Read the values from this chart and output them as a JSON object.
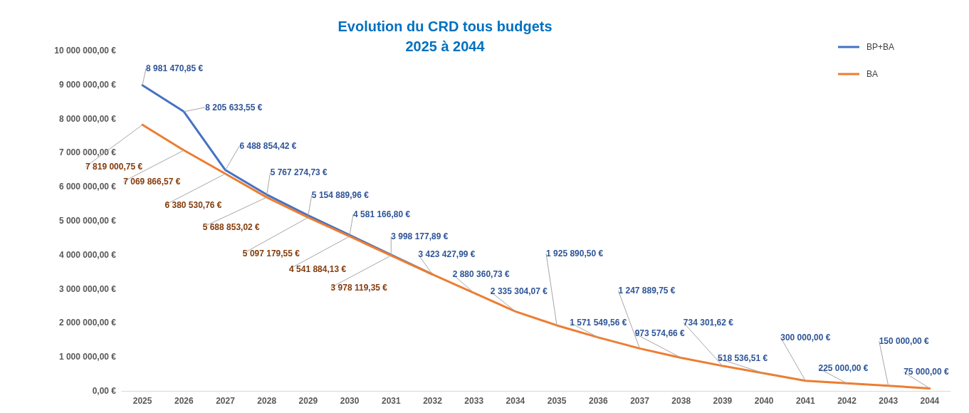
{
  "chart_data": {
    "type": "line",
    "title": "Evolution du CRD tous budgets",
    "subtitle": "2025 à 2044",
    "categories": [
      "2025",
      "2026",
      "2027",
      "2028",
      "2029",
      "2030",
      "2031",
      "2032",
      "2033",
      "2034",
      "2035",
      "2036",
      "2037",
      "2038",
      "2039",
      "2040",
      "2041",
      "2042",
      "2043",
      "2044"
    ],
    "series": [
      {
        "name": "BP+BA",
        "color": "#4472c4",
        "values": [
          8981470.85,
          8205633.55,
          6488854.42,
          5767274.73,
          5154889.96,
          4581166.8,
          3998177.89,
          3423427.99,
          null,
          null,
          null,
          null,
          null,
          null,
          null,
          null,
          null,
          null,
          null,
          null
        ],
        "value_labels": [
          "8 981 470,85 €",
          "8 205 633,55 €",
          "6 488 854,42 €",
          "5 767 274,73 €",
          "5 154 889,96 €",
          "4 581 166,80 €",
          "3 998 177,89 €",
          "3 423 427,99 €",
          null,
          null,
          null,
          null,
          null,
          null,
          null,
          null,
          null,
          null,
          null,
          null
        ]
      },
      {
        "name": "BA",
        "color": "#ed7d31",
        "values": [
          7819000.75,
          7069866.57,
          6380530.76,
          5688853.02,
          5097179.55,
          4541884.13,
          3978119.35,
          3423427.99,
          2880360.73,
          2335304.07,
          1925890.5,
          1571549.56,
          1247889.75,
          973574.66,
          734301.62,
          518536.51,
          300000.0,
          225000.0,
          150000.0,
          75000.0
        ],
        "value_labels": [
          "7 819 000,75 €",
          "7 069 866,57 €",
          "6 380 530,76 €",
          "5 688 853,02 €",
          "5 097 179,55 €",
          "4 541 884,13 €",
          "3 978 119,35 €",
          null,
          "2 880 360,73 €",
          "2 335 304,07 €",
          "1 925 890,50 €",
          "1 571 549,56 €",
          "1 247 889,75 €",
          "973 574,66 €",
          "734 301,62 €",
          "518 536,51 €",
          "300 000,00 €",
          "225 000,00 €",
          "150 000,00 €",
          "75 000,00 €"
        ]
      }
    ],
    "ylim": [
      0,
      10000000
    ],
    "yticks": [
      {
        "value": 0,
        "label": "0,00 €"
      },
      {
        "value": 1000000,
        "label": "1 000 000,00 €"
      },
      {
        "value": 2000000,
        "label": "2 000 000,00 €"
      },
      {
        "value": 3000000,
        "label": "3 000 000,00 €"
      },
      {
        "value": 4000000,
        "label": "4 000 000,00 €"
      },
      {
        "value": 5000000,
        "label": "5 000 000,00 €"
      },
      {
        "value": 6000000,
        "label": "6 000 000,00 €"
      },
      {
        "value": 7000000,
        "label": "7 000 000,00 €"
      },
      {
        "value": 8000000,
        "label": "8 000 000,00 €"
      },
      {
        "value": 9000000,
        "label": "9 000 000,00 €"
      },
      {
        "value": 10000000,
        "label": "10 000 000,00 €"
      }
    ],
    "legend": "top right",
    "marker": "none",
    "line_style": "solid",
    "grid": false
  }
}
